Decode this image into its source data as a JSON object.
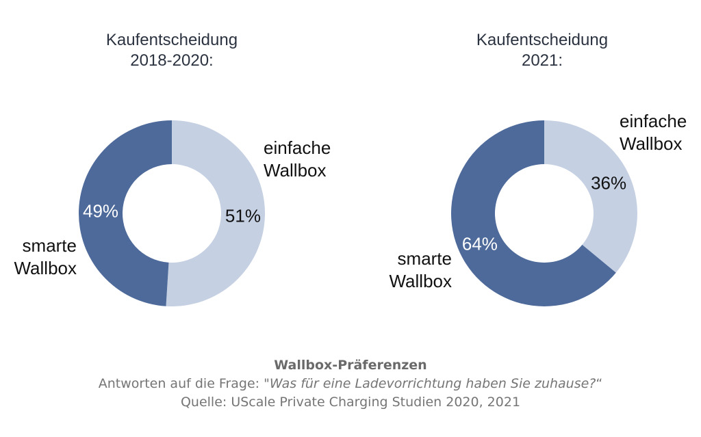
{
  "colors": {
    "smart": "#4d6a9a",
    "simple": "#c5d0e3",
    "title_text": "#2b3240",
    "caption_text": "#757575"
  },
  "chart_data": [
    {
      "type": "pie",
      "donut": true,
      "title_lines": [
        "Kaufentscheidung",
        "2018-2020:"
      ],
      "slices": [
        {
          "label_lines": [
            "einfache",
            "Wallbox"
          ],
          "value": 51,
          "value_label": "51%",
          "color": "#c5d0e3",
          "label_color": "#111111"
        },
        {
          "label_lines": [
            "smarte",
            "Wallbox"
          ],
          "value": 49,
          "value_label": "49%",
          "color": "#4d6a9a",
          "label_color": "#ffffff"
        }
      ]
    },
    {
      "type": "pie",
      "donut": true,
      "title_lines": [
        "Kaufentscheidung",
        "2021:"
      ],
      "slices": [
        {
          "label_lines": [
            "einfache",
            "Wallbox"
          ],
          "value": 36,
          "value_label": "36%",
          "color": "#c5d0e3",
          "label_color": "#111111"
        },
        {
          "label_lines": [
            "smarte",
            "Wallbox"
          ],
          "value": 64,
          "value_label": "64%",
          "color": "#4d6a9a",
          "label_color": "#ffffff"
        }
      ]
    }
  ],
  "caption": {
    "title": "Wallbox-Präferenzen",
    "question_prefix": "Antworten auf die Frage: \"",
    "question": "Was für eine Ladevorrichtung haben Sie zuhause?",
    "question_suffix": "“",
    "source": "Quelle: UScale Private Charging Studien 2020, 2021"
  }
}
